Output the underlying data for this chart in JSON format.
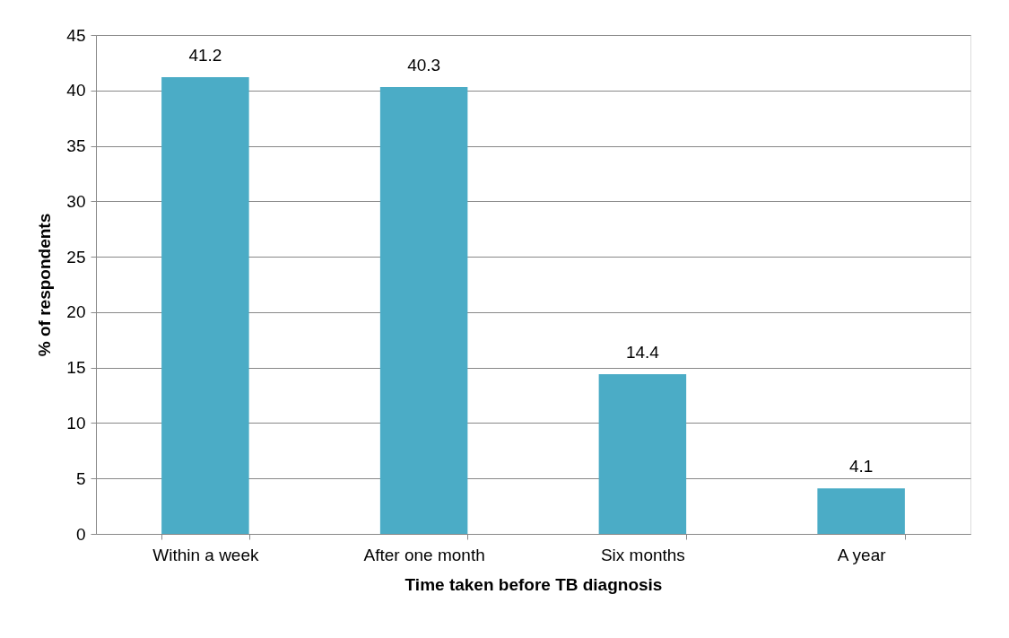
{
  "chart_data": {
    "type": "bar",
    "xlabel": "Time taken before TB diagnosis",
    "ylabel": "% of respondents",
    "categories": [
      "Within a week",
      "After one month",
      "Six months",
      "A year"
    ],
    "values": [
      41.2,
      40.3,
      14.4,
      4.1
    ],
    "color": "#4bacc6",
    "ylim": [
      0,
      45
    ],
    "yticks": [
      0,
      5,
      10,
      15,
      20,
      25,
      30,
      35,
      40,
      45
    ],
    "grid": "y",
    "data_labels": true
  }
}
